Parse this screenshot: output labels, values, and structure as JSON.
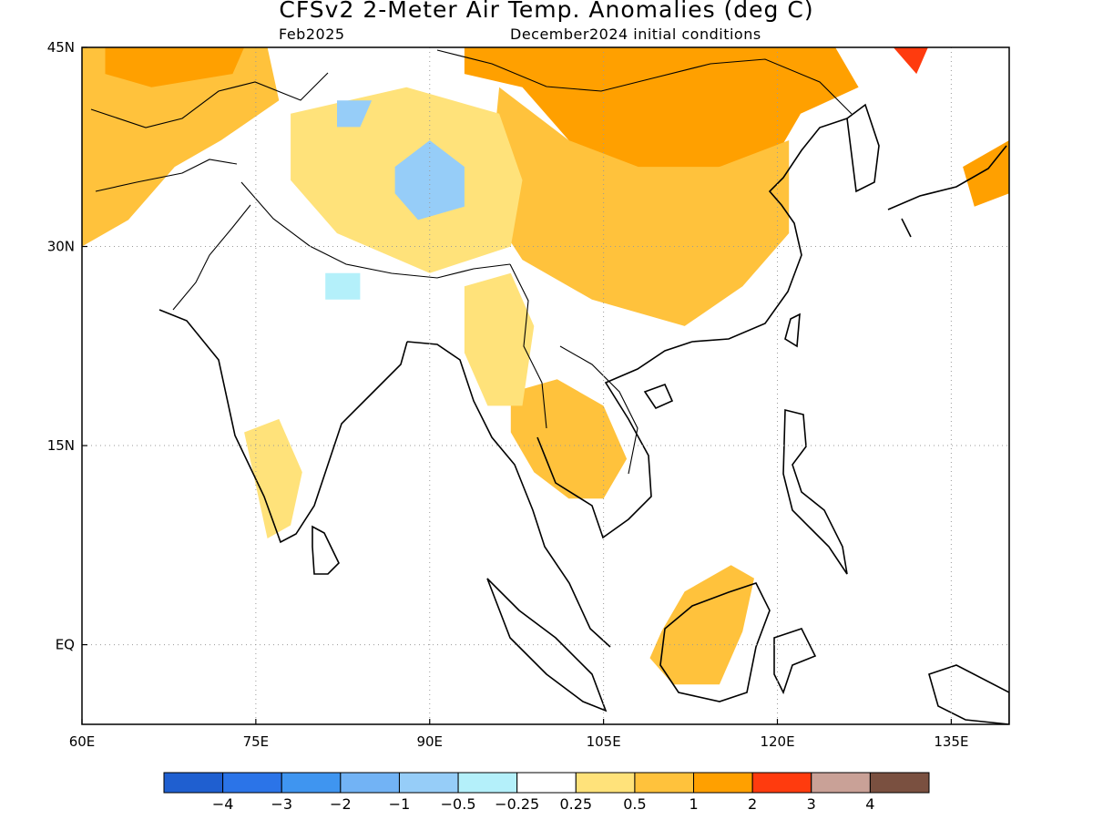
{
  "title": "CFSv2 2-Meter Air Temp. Anomalies (deg C)",
  "valid_month": "Feb2025",
  "initial_conditions": "December2024 initial conditions",
  "map": {
    "lon_range": [
      60,
      140
    ],
    "lat_range": [
      -6,
      45
    ],
    "lon_ticks": [
      {
        "value": 60,
        "label": "60E"
      },
      {
        "value": 75,
        "label": "75E"
      },
      {
        "value": 90,
        "label": "90E"
      },
      {
        "value": 105,
        "label": "105E"
      },
      {
        "value": 120,
        "label": "120E"
      },
      {
        "value": 135,
        "label": "135E"
      }
    ],
    "lat_ticks": [
      {
        "value": 45,
        "label": "45N"
      },
      {
        "value": 30,
        "label": "30N"
      },
      {
        "value": 15,
        "label": "15N"
      },
      {
        "value": 0,
        "label": "EQ"
      }
    ],
    "grid": "dotted"
  },
  "colorbar": {
    "colors": [
      "#1f5fd0",
      "#2b74e8",
      "#3f95f0",
      "#72b3f5",
      "#96cdf8",
      "#b4f0fa",
      "#ffffff",
      "#ffe27a",
      "#ffc23c",
      "#ffa000",
      "#ff3b0e",
      "#c9a197",
      "#7a5040"
    ],
    "labels": [
      "-4",
      "-3",
      "-2",
      "-1",
      "-0.5",
      "-0.25",
      "0.25",
      "0.5",
      "1",
      "2",
      "3",
      "4"
    ]
  },
  "regions": [
    {
      "name": "mongolia-china-north",
      "level": "1",
      "color": "#ffa000",
      "polygon": [
        [
          93,
          45
        ],
        [
          125,
          45
        ],
        [
          127,
          42
        ],
        [
          122,
          40
        ],
        [
          120,
          37
        ],
        [
          115,
          36
        ],
        [
          110,
          32
        ],
        [
          105,
          33
        ],
        [
          102,
          38
        ],
        [
          98,
          42
        ],
        [
          93,
          43
        ]
      ]
    },
    {
      "name": "china-central",
      "level": "0.5",
      "color": "#ffc23c",
      "polygon": [
        [
          96,
          42
        ],
        [
          102,
          38
        ],
        [
          108,
          36
        ],
        [
          115,
          36
        ],
        [
          121,
          38
        ],
        [
          121,
          31
        ],
        [
          117,
          27
        ],
        [
          112,
          24
        ],
        [
          104,
          26
        ],
        [
          98,
          29
        ],
        [
          95,
          33
        ]
      ]
    },
    {
      "name": "west-asia",
      "level": "0.5",
      "color": "#ffc23c",
      "polygon": [
        [
          60,
          45
        ],
        [
          76,
          45
        ],
        [
          77,
          41
        ],
        [
          72,
          38
        ],
        [
          68,
          36
        ],
        [
          64,
          32
        ],
        [
          60,
          30
        ]
      ]
    },
    {
      "name": "kazakhstan-north",
      "level": "1",
      "color": "#ffa000",
      "polygon": [
        [
          62,
          45
        ],
        [
          74,
          45
        ],
        [
          73,
          43
        ],
        [
          66,
          42
        ],
        [
          62,
          43
        ]
      ]
    },
    {
      "name": "tibet-warm",
      "level": "0.25",
      "color": "#ffe27a",
      "polygon": [
        [
          78,
          40
        ],
        [
          88,
          42
        ],
        [
          96,
          40
        ],
        [
          98,
          35
        ],
        [
          97,
          30
        ],
        [
          90,
          28
        ],
        [
          82,
          31
        ],
        [
          78,
          35
        ]
      ]
    },
    {
      "name": "indochina",
      "level": "0.5",
      "color": "#ffc23c",
      "polygon": [
        [
          97,
          19
        ],
        [
          101,
          20
        ],
        [
          105,
          18
        ],
        [
          107,
          14
        ],
        [
          105,
          11
        ],
        [
          102,
          11
        ],
        [
          99,
          13
        ],
        [
          97,
          16
        ]
      ]
    },
    {
      "name": "myanmar",
      "level": "0.25",
      "color": "#ffe27a",
      "polygon": [
        [
          93,
          27
        ],
        [
          97,
          28
        ],
        [
          99,
          24
        ],
        [
          98,
          18
        ],
        [
          95,
          18
        ],
        [
          93,
          22
        ]
      ]
    },
    {
      "name": "borneo",
      "level": "0.5",
      "color": "#ffc23c",
      "polygon": [
        [
          110,
          1
        ],
        [
          112,
          4
        ],
        [
          116,
          6
        ],
        [
          118,
          5
        ],
        [
          117,
          1
        ],
        [
          115,
          -3
        ],
        [
          111,
          -3
        ],
        [
          109,
          -1
        ]
      ]
    },
    {
      "name": "india-south",
      "level": "0.25",
      "color": "#ffe27a",
      "polygon": [
        [
          74,
          16
        ],
        [
          77,
          17
        ],
        [
          79,
          13
        ],
        [
          78,
          9
        ],
        [
          76,
          8
        ],
        [
          75,
          12
        ]
      ]
    },
    {
      "name": "east-japan",
      "level": "1",
      "color": "#ffa000",
      "polygon": [
        [
          136,
          36
        ],
        [
          140,
          38
        ],
        [
          140,
          34
        ],
        [
          137,
          33
        ]
      ]
    },
    {
      "name": "russia-far-east",
      "level": "2",
      "color": "#ff3b0e",
      "polygon": [
        [
          130,
          45
        ],
        [
          133,
          45
        ],
        [
          132,
          43
        ]
      ]
    }
  ],
  "cold_regions": [
    {
      "name": "tibet-cold",
      "level": "-0.5",
      "color": "#96cdf8",
      "polygon": [
        [
          87,
          36
        ],
        [
          90,
          38
        ],
        [
          93,
          36
        ],
        [
          93,
          33
        ],
        [
          89,
          32
        ],
        [
          87,
          34
        ]
      ]
    },
    {
      "name": "tarim-cold",
      "level": "-0.5",
      "color": "#96cdf8",
      "polygon": [
        [
          82,
          41
        ],
        [
          85,
          41
        ],
        [
          84,
          39
        ],
        [
          82,
          39
        ]
      ]
    },
    {
      "name": "india-north-cold",
      "level": "-0.25",
      "color": "#b4f0fa",
      "polygon": [
        [
          81,
          28
        ],
        [
          84,
          28
        ],
        [
          84,
          26
        ],
        [
          81,
          26
        ]
      ]
    }
  ]
}
